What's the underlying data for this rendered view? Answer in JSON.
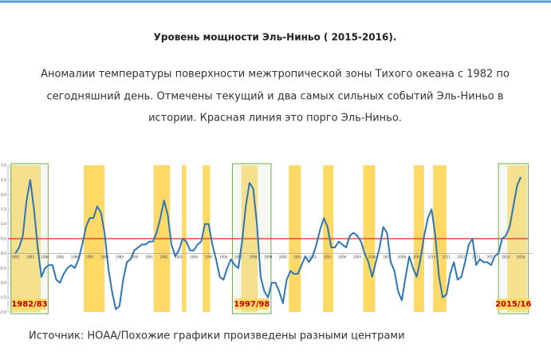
{
  "header": {
    "title": "Уровень мощности Эль-Ниньо ( 2015-2016).",
    "paragraph": [
      "Аномалии температуры поверхности межтропической зоны Тихого  океана с 1982 по",
      "сегодняшний день.  Отмечены текущий  и два самых сильных  событий Эль-Ниньо в",
      "истории. Красная линия это  порго Эль-Ниньо."
    ]
  },
  "chart_data": {
    "type": "line",
    "color": "#2e75b6",
    "x": [
      1982,
      1982.25,
      1982.5,
      1982.75,
      1983,
      1983.25,
      1983.5,
      1983.75,
      1984,
      1984.25,
      1984.5,
      1984.75,
      1985,
      1985.25,
      1985.5,
      1985.75,
      1986,
      1986.25,
      1986.5,
      1986.75,
      1987,
      1987.25,
      1987.5,
      1987.75,
      1988,
      1988.25,
      1988.5,
      1988.75,
      1989,
      1989.25,
      1989.5,
      1989.75,
      1990,
      1990.25,
      1990.5,
      1990.75,
      1991,
      1991.25,
      1991.5,
      1991.75,
      1992,
      1992.25,
      1992.5,
      1992.75,
      1993,
      1993.25,
      1993.5,
      1993.75,
      1994,
      1994.25,
      1994.5,
      1994.75,
      1995,
      1995.25,
      1995.5,
      1995.75,
      1996,
      1996.25,
      1996.5,
      1996.75,
      1997,
      1997.25,
      1997.5,
      1997.75,
      1998,
      1998.25,
      1998.5,
      1998.75,
      1999,
      1999.25,
      1999.5,
      1999.75,
      2000,
      2000.25,
      2000.5,
      2000.75,
      2001,
      2001.25,
      2001.5,
      2001.75,
      2002,
      2002.25,
      2002.5,
      2002.75,
      2003,
      2003.25,
      2003.5,
      2003.75,
      2004,
      2004.25,
      2004.5,
      2004.75,
      2005,
      2005.25,
      2005.5,
      2005.75,
      2006,
      2006.25,
      2006.5,
      2006.75,
      2007,
      2007.25,
      2007.5,
      2007.75,
      2008,
      2008.25,
      2008.5,
      2008.75,
      2009,
      2009.25,
      2009.5,
      2009.75,
      2010,
      2010.25,
      2010.5,
      2010.75,
      2011,
      2011.25,
      2011.5,
      2011.75,
      2012,
      2012.25,
      2012.5,
      2012.75,
      2013,
      2013.25,
      2013.5,
      2013.75,
      2014,
      2014.25,
      2014.5,
      2014.75,
      2015,
      2015.25,
      2015.5,
      2015.75,
      2016
    ],
    "values": [
      0.0,
      0.2,
      0.6,
      1.8,
      2.5,
      1.5,
      0.2,
      -0.8,
      -0.5,
      -0.4,
      -0.4,
      -0.9,
      -1.0,
      -0.7,
      -0.5,
      -0.4,
      -0.5,
      -0.2,
      0.3,
      0.9,
      1.2,
      1.2,
      1.6,
      1.4,
      0.7,
      -0.5,
      -1.3,
      -1.9,
      -1.8,
      -0.9,
      -0.3,
      -0.2,
      0.1,
      0.2,
      0.3,
      0.3,
      0.4,
      0.4,
      0.7,
      1.2,
      1.8,
      1.3,
      0.3,
      -0.1,
      0.1,
      0.5,
      0.4,
      0.1,
      0.1,
      0.3,
      0.4,
      1.0,
      1.0,
      0.3,
      -0.2,
      -0.8,
      -0.9,
      -0.5,
      -0.2,
      -0.4,
      -0.5,
      0.4,
      1.6,
      2.4,
      2.2,
      1.0,
      -0.8,
      -1.3,
      -1.5,
      -1.0,
      -1.0,
      -1.3,
      -1.7,
      -0.9,
      -0.6,
      -0.7,
      -0.7,
      -0.4,
      -0.1,
      -0.3,
      -0.1,
      0.3,
      0.8,
      1.2,
      0.9,
      0.2,
      0.2,
      0.4,
      0.3,
      0.2,
      0.6,
      0.7,
      0.6,
      0.4,
      0.0,
      -0.3,
      -0.8,
      -0.3,
      0.2,
      0.9,
      0.7,
      -0.3,
      -0.6,
      -1.3,
      -1.6,
      -0.8,
      -0.1,
      -0.5,
      -0.8,
      -0.2,
      0.6,
      1.2,
      1.5,
      0.6,
      -0.8,
      -1.5,
      -1.4,
      -0.7,
      -0.3,
      -0.9,
      -0.8,
      -0.3,
      0.3,
      0.5,
      -0.4,
      -0.2,
      -0.3,
      -0.3,
      -0.4,
      -0.1,
      0.0,
      0.5,
      0.6,
      0.9,
      1.6,
      2.3,
      2.6
    ],
    "xlim": [
      1981.5,
      2016.8
    ],
    "xticks": [
      1982,
      1983,
      1984,
      1985,
      1986,
      1987,
      1988,
      1989,
      1990,
      1991,
      1992,
      1993,
      1994,
      1995,
      1996,
      1997,
      1998,
      1999,
      2000,
      2001,
      2002,
      2003,
      2004,
      2005,
      2006,
      2007,
      2008,
      2009,
      2010,
      2011,
      2012,
      2013,
      2014,
      2015,
      2016
    ],
    "ylim": [
      -2.0,
      3.0
    ],
    "yticks": [
      {
        "value": 3,
        "label": "3.0"
      },
      {
        "value": 2.5,
        "label": "2.5"
      },
      {
        "value": 2,
        "label": "2.0"
      },
      {
        "value": 1.5,
        "label": "1.5"
      },
      {
        "value": 1,
        "label": "1.0"
      },
      {
        "value": 0.5,
        "label": "0.5"
      },
      {
        "value": 0,
        "label": "0.0"
      },
      {
        "value": -0.5,
        "label": "-0.5"
      },
      {
        "value": -1,
        "label": "-1.0"
      },
      {
        "value": -1.5,
        "label": "-1.5"
      },
      {
        "value": -2,
        "label": "-2.0"
      }
    ],
    "threshold": 0.5,
    "threshold_color": "#e8262a",
    "band_color": "#ffd966",
    "bands": [
      {
        "start": 1981.7,
        "end": 1983.7
      },
      {
        "start": 1986.6,
        "end": 1988.0
      },
      {
        "start": 1991.3,
        "end": 1992.4
      },
      {
        "start": 1993.2,
        "end": 1993.5
      },
      {
        "start": 1994.6,
        "end": 1995.1
      },
      {
        "start": 1997.2,
        "end": 1998.3
      },
      {
        "start": 2000.4,
        "end": 2001.2
      },
      {
        "start": 2002.7,
        "end": 2003.4
      },
      {
        "start": 2005.4,
        "end": 2006.2
      },
      {
        "start": 2008.8,
        "end": 2009.5
      },
      {
        "start": 2010.1,
        "end": 2011.0
      },
      {
        "start": 2015.1,
        "end": 2016.4
      }
    ],
    "boxes": [
      {
        "start": 1981.7,
        "end": 1984.2,
        "label": "1982/83"
      },
      {
        "start": 1996.6,
        "end": 1999.2,
        "label": "1997/98"
      },
      {
        "start": 2014.5,
        "end": 2016.5,
        "label": "2015/16"
      }
    ]
  },
  "footer": {
    "source": "Источник:  НОАА/Похожие графики произведены разными центрами"
  }
}
